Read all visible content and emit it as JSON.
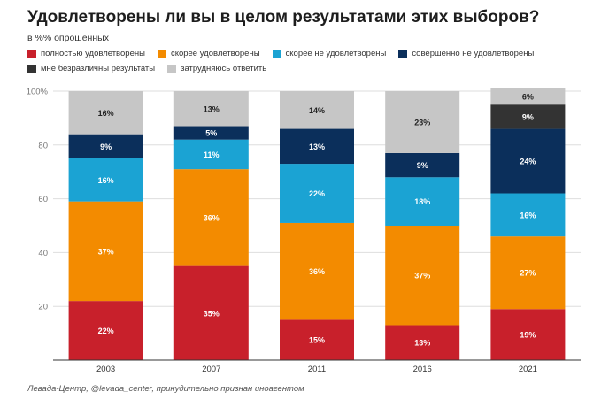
{
  "title": "Удовлетворены ли вы в целом результатами этих выборов?",
  "subtitle": "в %% опрошенных",
  "source": "Левада-Центр, @levada_center, принудительно признан иноагентом",
  "chart_data": {
    "type": "bar",
    "stacked": true,
    "categories": [
      "2003",
      "2007",
      "2011",
      "2016",
      "2021"
    ],
    "ylim": [
      0,
      100
    ],
    "y_ticks": [
      "20",
      "40",
      "60",
      "80",
      "100%"
    ],
    "y_tick_values": [
      20,
      40,
      60,
      80,
      100
    ],
    "grid": true,
    "legend_position": "top",
    "series": [
      {
        "name": "полностью удовлетворены",
        "color": "#c8202b",
        "values": [
          22,
          35,
          15,
          13,
          19
        ],
        "labels": [
          "22%",
          "35%",
          "15%",
          "13%",
          "19%"
        ]
      },
      {
        "name": "скорее удовлетворены",
        "color": "#f38b00",
        "values": [
          37,
          36,
          36,
          37,
          27
        ],
        "labels": [
          "37%",
          "36%",
          "36%",
          "37%",
          "27%"
        ]
      },
      {
        "name": "скорее не удовлетворены",
        "color": "#1ba3d3",
        "values": [
          16,
          11,
          22,
          18,
          16
        ],
        "labels": [
          "16%",
          "11%",
          "22%",
          "18%",
          "16%"
        ]
      },
      {
        "name": "совершенно не удовлетворены",
        "color": "#0b2f5b",
        "values": [
          9,
          5,
          13,
          9,
          24
        ],
        "labels": [
          "9%",
          "5%",
          "13%",
          "9%",
          "24%"
        ]
      },
      {
        "name": "мне безразличны результаты",
        "color": "#333333",
        "values": [
          0,
          0,
          0,
          0,
          9
        ],
        "labels": [
          "",
          "",
          "",
          "",
          "9%"
        ]
      },
      {
        "name": "затрудняюсь ответить",
        "color": "#c6c6c6",
        "values": [
          16,
          13,
          14,
          23,
          6
        ],
        "labels": [
          "16%",
          "13%",
          "14%",
          "23%",
          "6%"
        ]
      }
    ]
  }
}
